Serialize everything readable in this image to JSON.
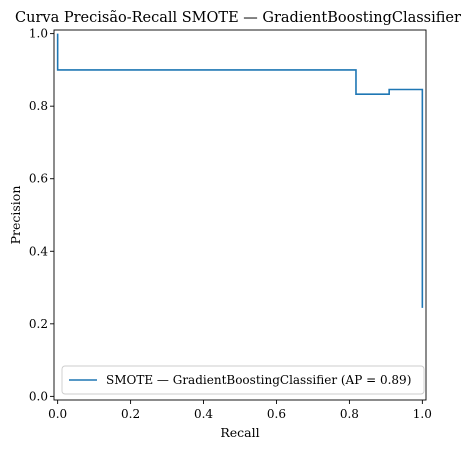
{
  "chart_data": {
    "type": "line",
    "title": "Curva Precisão-Recall SMOTE — GradientBoostingClassifier",
    "xlabel": "Recall",
    "ylabel": "Precision",
    "xlim": [
      -0.01,
      1.01
    ],
    "ylim": [
      -0.01,
      1.01
    ],
    "xticks": [
      0.0,
      0.2,
      0.4,
      0.6,
      0.8,
      1.0
    ],
    "yticks": [
      0.0,
      0.2,
      0.4,
      0.6,
      0.8,
      1.0
    ],
    "xtick_labels": [
      "0.0",
      "0.2",
      "0.4",
      "0.6",
      "0.8",
      "1.0"
    ],
    "ytick_labels": [
      "0.0",
      "0.2",
      "0.4",
      "0.6",
      "0.8",
      "1.0"
    ],
    "grid": false,
    "legend_position": "lower-right",
    "series": [
      {
        "name": "SMOTE — GradientBoostingClassifier (AP = 0.89)",
        "color": "#1f77b4",
        "drawstyle": "steps-post",
        "x": [
          0.0,
          0.0,
          0.0,
          0.818,
          0.818,
          0.909,
          0.909,
          1.0,
          1.0
        ],
        "y": [
          1.0,
          1.0,
          0.9,
          0.9,
          0.833,
          0.833,
          0.846,
          0.846,
          0.244
        ]
      }
    ]
  }
}
